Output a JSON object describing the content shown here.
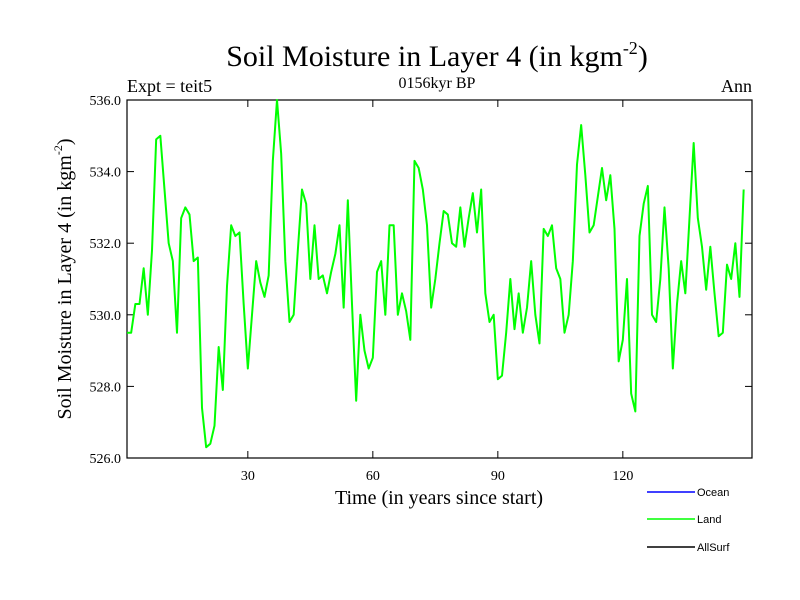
{
  "chart_data": {
    "type": "line",
    "title": "Soil Moisture in Layer 4 (in kgm",
    "title_sup": "-2",
    "title_close": ")",
    "subtitle": "0156kyr BP",
    "left_label": "Expt = teit5",
    "right_label": "Ann",
    "xlabel": "Time (in years since start)",
    "ylabel": "Soil Moisture in Layer 4 (in kgm",
    "ylabel_sup": "-2",
    "ylabel_close": ")",
    "xlim": [
      1,
      151
    ],
    "ylim": [
      526.0,
      536.0
    ],
    "xticks": [
      30,
      60,
      90,
      120
    ],
    "xtick_labels": [
      "30",
      "60",
      "90",
      "120"
    ],
    "yticks": [
      526,
      528,
      530,
      532,
      534,
      536
    ],
    "ytick_labels": [
      "526.0",
      "528.0",
      "530.0",
      "532.0",
      "534.0",
      "536.0"
    ],
    "legend": [
      {
        "name": "Ocean",
        "color": "#0000ff"
      },
      {
        "name": "Land",
        "color": "#00ff00"
      },
      {
        "name": "AllSurf",
        "color": "#000000"
      }
    ],
    "series": [
      {
        "name": "Land",
        "color": "#00ff00",
        "x_start": 1,
        "values": [
          529.5,
          529.5,
          530.3,
          530.3,
          531.3,
          530.0,
          531.8,
          534.9,
          535.0,
          533.5,
          532.0,
          531.5,
          529.5,
          532.7,
          533.0,
          532.8,
          531.5,
          531.6,
          527.4,
          526.3,
          526.4,
          526.9,
          529.1,
          527.9,
          530.8,
          532.5,
          532.2,
          532.3,
          530.3,
          528.5,
          530.0,
          531.5,
          530.9,
          530.5,
          531.1,
          534.3,
          536.0,
          534.5,
          531.5,
          529.8,
          530.0,
          531.8,
          533.5,
          533.1,
          531.0,
          532.5,
          531.0,
          531.1,
          530.6,
          531.2,
          531.7,
          532.5,
          530.2,
          533.2,
          530.3,
          527.6,
          530.0,
          529.0,
          528.5,
          528.8,
          531.2,
          531.5,
          530.0,
          532.5,
          532.5,
          530.0,
          530.6,
          530.1,
          529.3,
          534.3,
          534.1,
          533.5,
          532.5,
          530.2,
          531.0,
          532.0,
          532.9,
          532.8,
          532.0,
          531.9,
          533.0,
          531.9,
          532.7,
          533.4,
          532.3,
          533.5,
          530.6,
          529.8,
          530.0,
          528.2,
          528.3,
          529.5,
          531.0,
          529.6,
          530.6,
          529.5,
          530.2,
          531.5,
          530.0,
          529.2,
          532.4,
          532.2,
          532.5,
          531.3,
          531.0,
          529.5,
          530.0,
          531.5,
          534.2,
          535.3,
          533.9,
          532.3,
          532.5,
          533.3,
          534.1,
          533.2,
          533.9,
          532.4,
          528.7,
          529.3,
          531.0,
          527.8,
          527.3,
          532.2,
          533.1,
          533.6,
          530.0,
          529.8,
          531.0,
          533.0,
          531.3,
          528.5,
          530.3,
          531.5,
          530.6,
          532.7,
          534.8,
          532.7,
          531.9,
          530.7,
          531.9,
          530.6,
          529.4,
          529.5,
          531.4,
          531.0,
          532.0,
          530.5,
          533.5
        ]
      }
    ]
  }
}
